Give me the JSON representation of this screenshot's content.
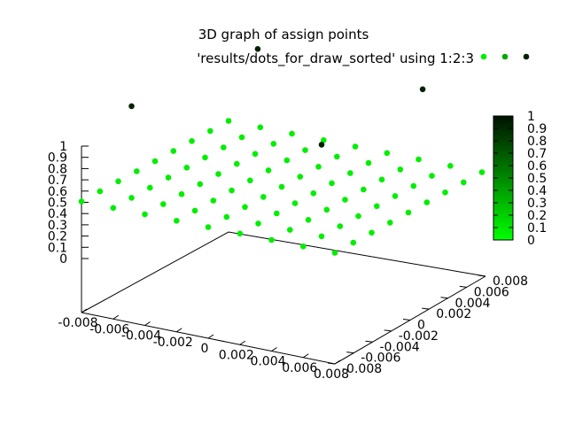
{
  "chart_data": {
    "type": "scatter",
    "title": "3D graph of assign points",
    "legend_entry": "'results/dots_for_draw_sorted' using 1:2:3",
    "legend_position": "top-right",
    "x_ticks": [
      "-0.008",
      "-0.006",
      "-0.004",
      "-0.002",
      "0",
      "0.002",
      "0.004",
      "0.006",
      "0.008"
    ],
    "y_ticks": [
      "-0.008",
      "-0.006",
      "-0.004",
      "-0.002",
      "0",
      "0.002",
      "0.004",
      "0.006",
      "0.008"
    ],
    "z_ticks": [
      "0",
      "0.1",
      "0.2",
      "0.3",
      "0.4",
      "0.5",
      "0.6",
      "0.7",
      "0.8",
      "0.9",
      "1"
    ],
    "xlim": [
      -0.008,
      0.008
    ],
    "ylim": [
      -0.008,
      0.008
    ],
    "zlim": [
      0,
      1
    ],
    "colorbar": {
      "range": [
        0,
        1
      ],
      "ticks": [
        "0",
        "0.1",
        "0.2",
        "0.3",
        "0.4",
        "0.5",
        "0.6",
        "0.7",
        "0.8",
        "0.9",
        "1"
      ],
      "low_color": "#00ff00",
      "high_color": "#001100"
    },
    "point_colors": {
      "low": "#00ee00",
      "mid": "#00aa00",
      "high": "#002200"
    },
    "grid": false,
    "series": [
      {
        "description": "points with z = 0.5 on a 9x9 grid",
        "x": [
          -0.008,
          -0.006,
          -0.004,
          -0.002,
          0,
          0.002,
          0.004,
          0.006,
          0.008
        ],
        "y": [
          -0.008,
          -0.006,
          -0.004,
          -0.002,
          0,
          0.002,
          0.004,
          0.006,
          0.008
        ],
        "z": 0.5
      },
      {
        "description": "points with z = 1",
        "points": [
          {
            "x": -0.006,
            "y": -0.006,
            "z": 1
          },
          {
            "x": -0.005,
            "y": 0.006,
            "z": 1
          },
          {
            "x": 0.006,
            "y": 0.005,
            "z": 1
          },
          {
            "x": 0.006,
            "y": -0.006,
            "z": 1
          }
        ]
      }
    ]
  }
}
